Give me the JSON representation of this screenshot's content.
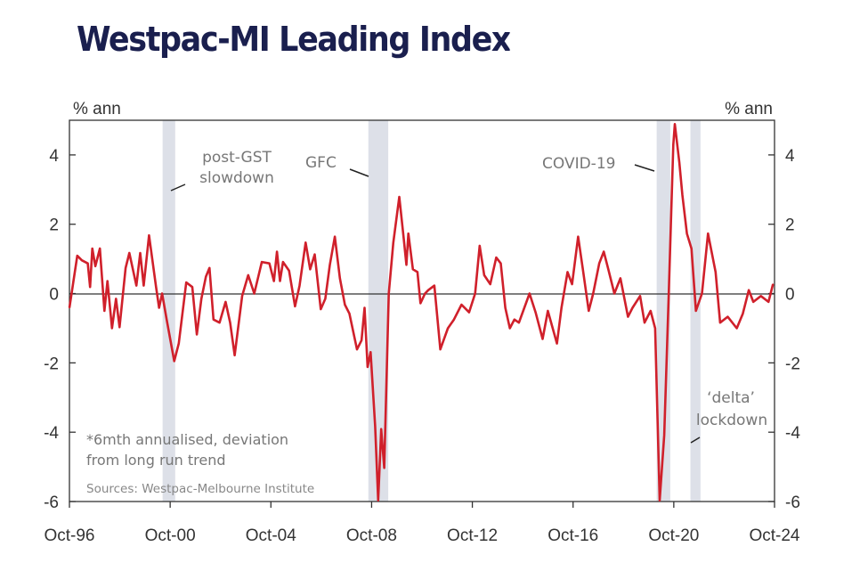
{
  "chart_data": {
    "type": "line",
    "title": "Westpac-MI Leading Index",
    "ylabel_left": "% ann",
    "ylabel_right": "% ann",
    "xlim": [
      1996.75,
      2024.75
    ],
    "ylim": [
      -6,
      5
    ],
    "yticks": [
      4,
      2,
      0,
      -2,
      -4,
      -6
    ],
    "xticks": [
      {
        "label": "Oct-96",
        "value": 1996.75
      },
      {
        "label": "Oct-00",
        "value": 2000.75
      },
      {
        "label": "Oct-04",
        "value": 2004.75
      },
      {
        "label": "Oct-08",
        "value": 2008.75
      },
      {
        "label": "Oct-12",
        "value": 2012.75
      },
      {
        "label": "Oct-16",
        "value": 2016.75
      },
      {
        "label": "Oct-20",
        "value": 2020.75
      },
      {
        "label": "Oct-24",
        "value": 2024.75
      }
    ],
    "grid": false,
    "zero_line": true,
    "line_color": "#d0202b",
    "band_color": "#dde0e8",
    "shaded_periods": [
      [
        2000.45,
        2000.95
      ],
      [
        2008.62,
        2009.41
      ],
      [
        2020.07,
        2020.61
      ],
      [
        2021.41,
        2021.81
      ]
    ],
    "annotations": [
      {
        "line1": "post-GST",
        "line2": "slowdown"
      },
      {
        "line1": "GFC",
        "line2": ""
      },
      {
        "line1": "COVID-19",
        "line2": ""
      },
      {
        "line1": "‘delta’",
        "line2": "lockdown"
      }
    ],
    "note_line1": "*6mth annualised, deviation",
    "note_line2": "from long run trend",
    "source": "Sources: Westpac-Melbourne Institute",
    "series": [
      {
        "x": [
          1996.75,
          1997.06,
          1997.24,
          1997.48,
          1997.57,
          1997.66,
          1997.78,
          1997.96,
          1998.14,
          1998.26,
          1998.44,
          1998.6,
          1998.74,
          1998.98,
          1999.13,
          1999.41,
          1999.56,
          1999.7,
          1999.91,
          2000.19,
          2000.31,
          2000.43,
          2000.61,
          2000.91,
          2001.09,
          2001.39,
          2001.63,
          2001.81,
          2001.99,
          2002.17,
          2002.31,
          2002.47,
          2002.71,
          2002.95,
          2003.13,
          2003.31,
          2003.61,
          2003.85,
          2004.09,
          2004.39,
          2004.69,
          2004.87,
          2004.99,
          2005.11,
          2005.23,
          2005.47,
          2005.71,
          2005.89,
          2006.13,
          2006.31,
          2006.49,
          2006.73,
          2006.91,
          2007.09,
          2007.29,
          2007.49,
          2007.69,
          2007.87,
          2008.17,
          2008.35,
          2008.47,
          2008.59,
          2008.71,
          2008.89,
          2009.01,
          2009.13,
          2009.25,
          2009.43,
          2009.61,
          2009.85,
          2010.03,
          2010.13,
          2010.21,
          2010.39,
          2010.57,
          2010.69,
          2010.87,
          2011.0,
          2011.24,
          2011.48,
          2011.78,
          2012.02,
          2012.32,
          2012.62,
          2012.86,
          2013.04,
          2013.22,
          2013.46,
          2013.7,
          2013.88,
          2014.06,
          2014.24,
          2014.42,
          2014.6,
          2015.02,
          2015.26,
          2015.54,
          2015.75,
          2016.11,
          2016.29,
          2016.53,
          2016.71,
          2016.95,
          2017.13,
          2017.37,
          2017.55,
          2017.79,
          2017.97,
          2018.15,
          2018.39,
          2018.63,
          2018.93,
          2019.11,
          2019.41,
          2019.59,
          2019.83,
          2020.01,
          2020.19,
          2020.37,
          2020.55,
          2020.73,
          2020.79,
          2020.97,
          2021.09,
          2021.27,
          2021.45,
          2021.63,
          2021.87,
          2022.11,
          2022.41,
          2022.59,
          2022.89,
          2023.25,
          2023.49,
          2023.73,
          2023.91,
          2024.21,
          2024.51,
          2024.69
        ],
        "y": [
          -0.41,
          1.09,
          0.96,
          0.87,
          0.19,
          1.3,
          0.79,
          1.3,
          -0.5,
          0.36,
          -1.0,
          -0.15,
          -0.97,
          0.74,
          1.17,
          0.23,
          1.17,
          0.23,
          1.68,
          0.19,
          -0.41,
          0,
          -0.75,
          -1.95,
          -1.44,
          0.32,
          0.19,
          -1.18,
          -0.15,
          0.49,
          0.74,
          -0.75,
          -0.84,
          -0.24,
          -0.84,
          -1.78,
          -0.07,
          0.53,
          0,
          0.91,
          0.87,
          0.36,
          1.21,
          0.36,
          0.91,
          0.66,
          -0.37,
          0.23,
          1.47,
          0.7,
          1.13,
          -0.45,
          -0.15,
          0.83,
          1.64,
          0.44,
          -0.32,
          -0.58,
          -1.61,
          -1.35,
          -0.41,
          -2.12,
          -1.69,
          -3.83,
          -5.97,
          -3.91,
          -5.03,
          0,
          1.47,
          2.79,
          1.56,
          0.83,
          1.73,
          0.7,
          0.62,
          -0.28,
          0,
          0.1,
          0.23,
          -1.61,
          -1.0,
          -0.75,
          -0.32,
          -0.54,
          0,
          1.38,
          0.53,
          0.27,
          1.04,
          0.87,
          -0.41,
          -1.0,
          -0.75,
          -0.84,
          0,
          -0.54,
          -1.31,
          -0.5,
          -1.44,
          -0.41,
          0.62,
          0.27,
          1.64,
          0.74,
          -0.5,
          0,
          0.87,
          1.21,
          0.7,
          0,
          0.44,
          -0.67,
          -0.41,
          -0.07,
          -0.84,
          -0.5,
          -1.0,
          -5.97,
          -4.09,
          0,
          4.29,
          4.89,
          3.78,
          2.84,
          1.73,
          1.3,
          -0.5,
          0,
          1.73,
          0.62,
          -0.84,
          -0.67,
          -1.0,
          -0.58,
          0.1,
          -0.24,
          -0.07,
          -0.24,
          0.27
        ]
      }
    ]
  }
}
